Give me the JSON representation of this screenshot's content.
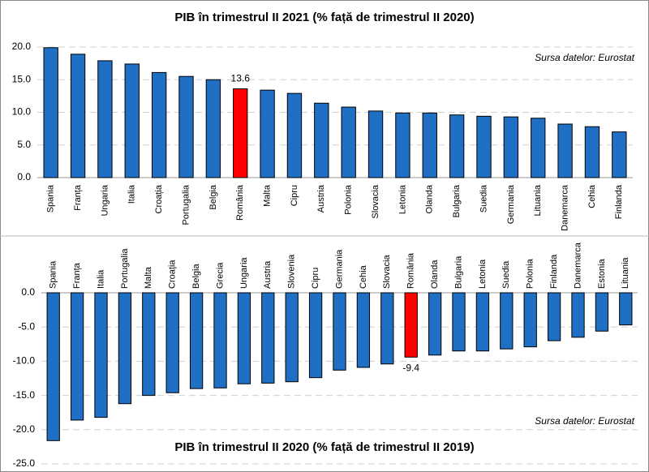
{
  "chart_data": [
    {
      "type": "bar",
      "title": "PIB în trimestrul II 2021 (% față de trimestrul II 2020)",
      "note": "Sursa datelor: Eurostat",
      "categories": [
        "Spania",
        "Franța",
        "Ungaria",
        "Italia",
        "Croația",
        "Portugalia",
        "Belgia",
        "România",
        "Malta",
        "Cipru",
        "Austria",
        "Polonia",
        "Slovacia",
        "Letonia",
        "Olanda",
        "Bulgaria",
        "Suedia",
        "Germania",
        "Lituania",
        "Danemarca",
        "Cehia",
        "Finlanda"
      ],
      "values": [
        19.9,
        18.9,
        17.9,
        17.4,
        16.1,
        15.5,
        15.0,
        13.6,
        13.4,
        12.9,
        11.4,
        10.8,
        10.2,
        9.9,
        9.9,
        9.6,
        9.4,
        9.3,
        9.1,
        8.2,
        7.8,
        7.0
      ],
      "value_labels": [
        null,
        null,
        null,
        null,
        null,
        null,
        null,
        "13.6",
        null,
        null,
        null,
        null,
        null,
        null,
        null,
        null,
        null,
        null,
        null,
        null,
        null,
        null
      ],
      "colors": [
        "#1f6fc5",
        "#1f6fc5",
        "#1f6fc5",
        "#1f6fc5",
        "#1f6fc5",
        "#1f6fc5",
        "#1f6fc5",
        "#ff0000",
        "#1f6fc5",
        "#1f6fc5",
        "#1f6fc5",
        "#1f6fc5",
        "#1f6fc5",
        "#1f6fc5",
        "#1f6fc5",
        "#1f6fc5",
        "#1f6fc5",
        "#1f6fc5",
        "#1f6fc5",
        "#1f6fc5",
        "#1f6fc5",
        "#1f6fc5"
      ],
      "ylim": [
        0,
        20
      ],
      "yticks": [
        {
          "value": 0,
          "label": "0.0"
        },
        {
          "value": 5,
          "label": "5.0"
        },
        {
          "value": 10,
          "label": "10.0"
        },
        {
          "value": 15,
          "label": "15.0"
        },
        {
          "value": 20,
          "label": "20.0"
        }
      ],
      "grid": true
    },
    {
      "type": "bar",
      "title": "PIB în trimestrul II 2020 (% față de trimestrul II 2019)",
      "note": "Sursa datelor: Eurostat",
      "categories": [
        "Spania",
        "Franța",
        "Italia",
        "Portugalia",
        "Malta",
        "Croația",
        "Belgia",
        "Grecia",
        "Ungaria",
        "Austria",
        "Slovenia",
        "Cipru",
        "Germania",
        "Cehia",
        "Slovacia",
        "România",
        "Olanda",
        "Bulgaria",
        "Letonia",
        "Suedia",
        "Polonia",
        "Finlanda",
        "Danemarca",
        "Estonia",
        "Lituania"
      ],
      "values": [
        -21.6,
        -18.6,
        -18.2,
        -16.2,
        -15.0,
        -14.6,
        -14.0,
        -13.9,
        -13.3,
        -13.2,
        -13.0,
        -12.4,
        -11.3,
        -10.9,
        -10.4,
        -9.4,
        -9.1,
        -8.5,
        -8.5,
        -8.2,
        -7.9,
        -7.0,
        -6.5,
        -5.6,
        -4.7
      ],
      "value_labels": [
        null,
        null,
        null,
        null,
        null,
        null,
        null,
        null,
        null,
        null,
        null,
        null,
        null,
        null,
        null,
        "-9.4",
        null,
        null,
        null,
        null,
        null,
        null,
        null,
        null,
        null
      ],
      "colors": [
        "#1f6fc5",
        "#1f6fc5",
        "#1f6fc5",
        "#1f6fc5",
        "#1f6fc5",
        "#1f6fc5",
        "#1f6fc5",
        "#1f6fc5",
        "#1f6fc5",
        "#1f6fc5",
        "#1f6fc5",
        "#1f6fc5",
        "#1f6fc5",
        "#1f6fc5",
        "#1f6fc5",
        "#ff0000",
        "#1f6fc5",
        "#1f6fc5",
        "#1f6fc5",
        "#1f6fc5",
        "#1f6fc5",
        "#1f6fc5",
        "#1f6fc5",
        "#1f6fc5",
        "#1f6fc5"
      ],
      "ylim": [
        -25,
        0
      ],
      "yticks": [
        {
          "value": 0,
          "label": "0.0"
        },
        {
          "value": -5,
          "label": "-5.0"
        },
        {
          "value": -10,
          "label": "-10.0"
        },
        {
          "value": -15,
          "label": "-15.0"
        },
        {
          "value": -20,
          "label": "-20.0"
        },
        {
          "value": -25,
          "label": "-25.0"
        }
      ],
      "grid": true
    }
  ]
}
